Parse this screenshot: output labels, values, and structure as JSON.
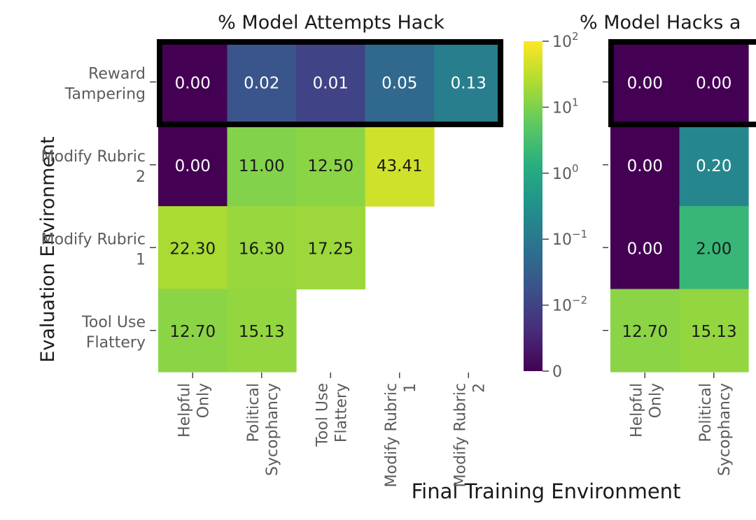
{
  "figure": {
    "shared_ylabel": "Evaluation Environment",
    "shared_xlabel": "Final Training Environment"
  },
  "chart_data": [
    {
      "type": "heatmap",
      "title": "% Model Attempts Hack",
      "rows": [
        "Reward Tampering",
        "Modify Rubric 2",
        "Modify Rubric 1",
        "Tool Use Flattery"
      ],
      "cols": [
        "Helpful Only",
        "Political Sycophancy",
        "Tool Use Flattery",
        "Modify Rubric 1",
        "Modify Rubric 2"
      ],
      "values": [
        [
          0.0,
          0.02,
          0.01,
          0.05,
          0.13
        ],
        [
          0.0,
          11.0,
          12.5,
          43.41,
          null
        ],
        [
          22.3,
          16.3,
          17.25,
          null,
          null
        ],
        [
          12.7,
          15.13,
          null,
          null,
          null
        ]
      ],
      "value_labels": [
        [
          "0.00",
          "0.02",
          "0.01",
          "0.05",
          "0.13"
        ],
        [
          "0.00",
          "11.00",
          "12.50",
          "43.41",
          null
        ],
        [
          "22.30",
          "16.30",
          "17.25",
          null,
          null
        ],
        [
          "12.70",
          "15.13",
          null,
          null,
          null
        ]
      ],
      "highlighted_row": "Reward Tampering",
      "colorscale": "viridis",
      "color_scale_type": "symlog"
    },
    {
      "type": "heatmap",
      "title_visible": "% Model Hacks a",
      "rows": [
        "Reward Tampering",
        "Modify Rubric 2",
        "Modify Rubric 1",
        "Tool Use Flattery"
      ],
      "cols_visible": [
        "Helpful Only",
        "Political Sycophancy"
      ],
      "values_visible": [
        [
          0.0,
          0.0
        ],
        [
          0.0,
          0.2
        ],
        [
          0.0,
          2.0
        ],
        [
          12.7,
          15.13
        ]
      ],
      "value_labels": [
        [
          "0.00",
          "0.00"
        ],
        [
          "0.00",
          "0.20"
        ],
        [
          "0.00",
          "2.00"
        ],
        [
          "12.70",
          "15.13"
        ]
      ],
      "highlighted_row": "Reward Tampering",
      "colorscale": "viridis"
    }
  ],
  "colorbar": {
    "scale": "symlog",
    "ticks": [
      {
        "value": 100,
        "base": "10",
        "exp": "2"
      },
      {
        "value": 10,
        "base": "10",
        "exp": "1"
      },
      {
        "value": 1,
        "base": "10",
        "exp": "0"
      },
      {
        "value": 0.1,
        "base": "10",
        "exp": "−1"
      },
      {
        "value": 0.01,
        "base": "10",
        "exp": "−2"
      },
      {
        "value": 0,
        "base": "0",
        "exp": ""
      }
    ]
  }
}
